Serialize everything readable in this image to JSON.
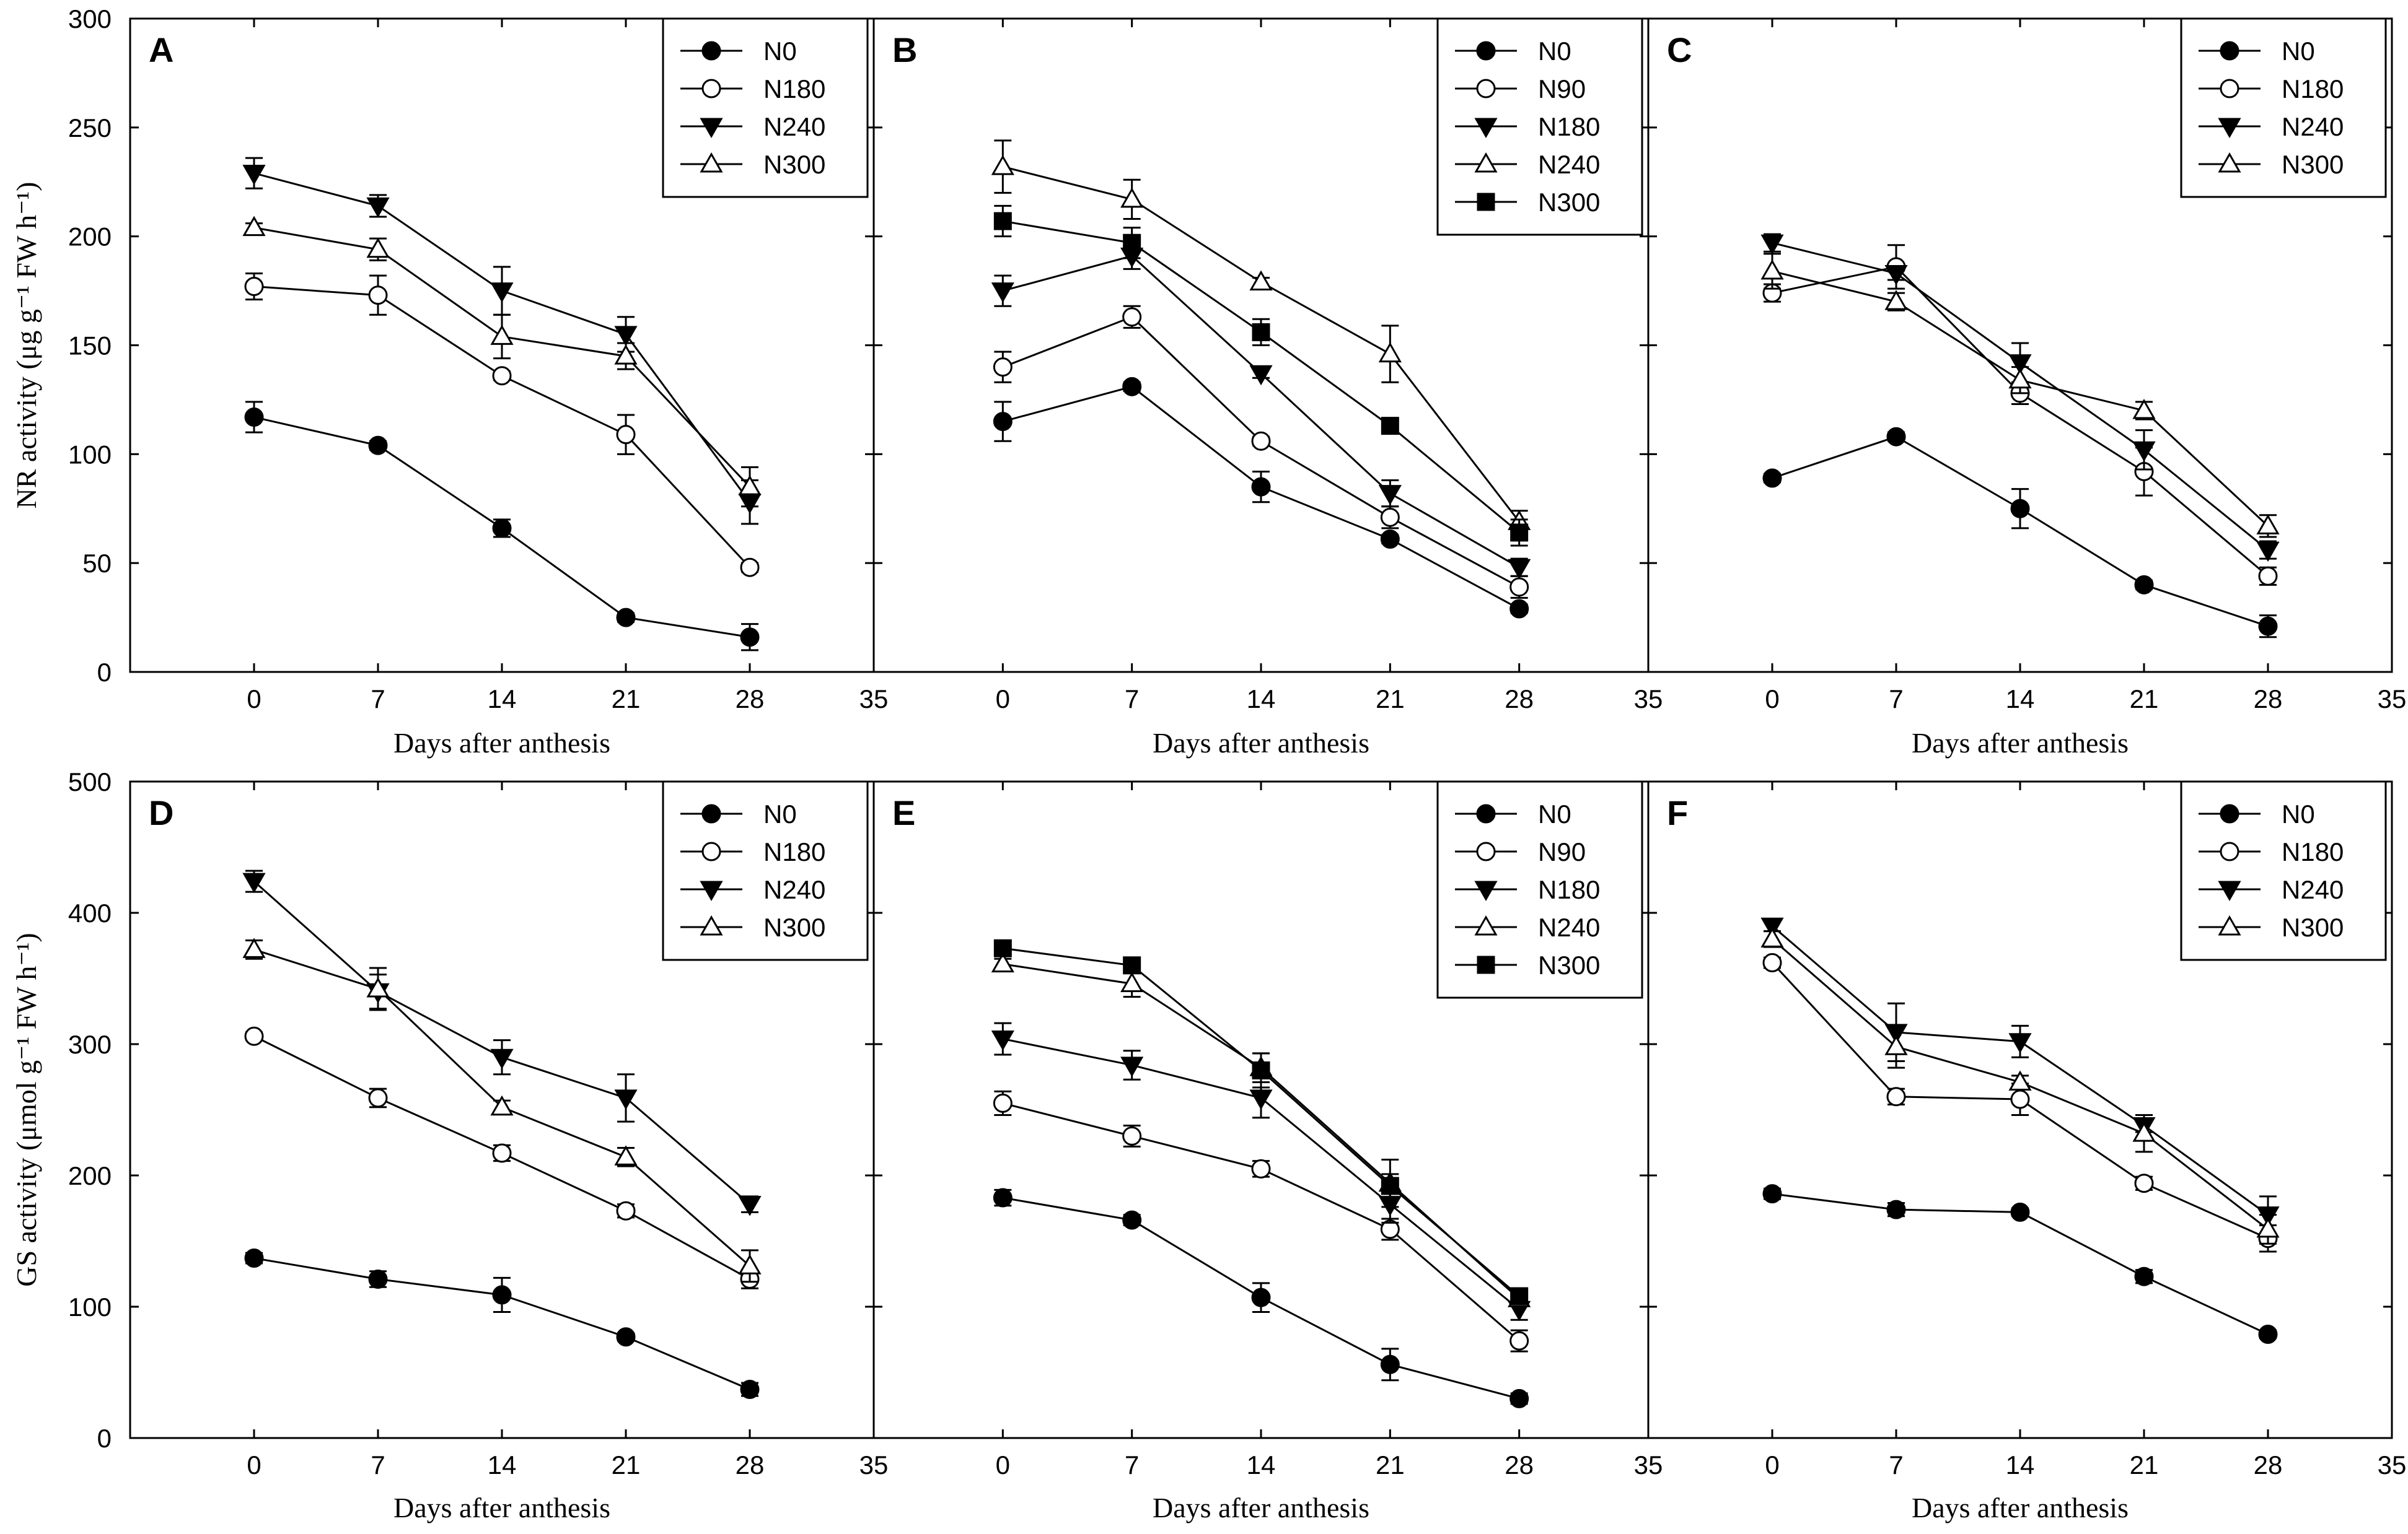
{
  "chart_data": [
    {
      "type": "line",
      "panel": "A",
      "xlabel": "Days after anthesis",
      "ylabel": "NR activity (μg g⁻¹ FW h⁻¹)",
      "xlim": [
        -7,
        35
      ],
      "ylim": [
        0,
        300
      ],
      "xticks": [
        "0",
        "7",
        "14",
        "21",
        "28",
        "35"
      ],
      "yticks": [
        "0",
        "50",
        "100",
        "150",
        "200",
        "250",
        "300"
      ],
      "x": [
        0,
        7,
        14,
        21,
        28
      ],
      "legend_position": "top-right",
      "series": [
        {
          "name": "N0",
          "marker": "filled-circle",
          "values": [
            117,
            104,
            66,
            25,
            16
          ],
          "errors": [
            7,
            2,
            4,
            2,
            6
          ]
        },
        {
          "name": "N180",
          "marker": "open-circle",
          "values": [
            177,
            173,
            136,
            109,
            48
          ],
          "errors": [
            6,
            9,
            2,
            9,
            2
          ]
        },
        {
          "name": "N240",
          "marker": "filled-triangle-down",
          "values": [
            229,
            214,
            175,
            155,
            78
          ],
          "errors": [
            7,
            5,
            11,
            8,
            10
          ]
        },
        {
          "name": "N300",
          "marker": "open-triangle-up",
          "values": [
            204,
            194,
            154,
            145,
            85
          ],
          "errors": [
            2,
            5,
            10,
            6,
            9
          ]
        }
      ]
    },
    {
      "type": "line",
      "panel": "B",
      "xlabel": "Days after anthesis",
      "xlim": [
        -7,
        35
      ],
      "ylim": [
        0,
        300
      ],
      "xticks": [
        "0",
        "7",
        "14",
        "21",
        "28",
        "35"
      ],
      "x": [
        0,
        7,
        14,
        21,
        28
      ],
      "legend_position": "top-right",
      "series": [
        {
          "name": "N0",
          "marker": "filled-circle",
          "values": [
            115,
            131,
            85,
            61,
            29
          ],
          "errors": [
            9,
            2,
            7,
            2,
            2
          ]
        },
        {
          "name": "N90",
          "marker": "open-circle",
          "values": [
            140,
            163,
            106,
            71,
            39
          ],
          "errors": [
            7,
            5,
            2,
            5,
            5
          ]
        },
        {
          "name": "N180",
          "marker": "filled-triangle-down",
          "values": [
            175,
            191,
            137,
            82,
            48
          ],
          "errors": [
            7,
            6,
            2,
            6,
            4
          ]
        },
        {
          "name": "N240",
          "marker": "open-triangle-up",
          "values": [
            232,
            217,
            179,
            146,
            69
          ],
          "errors": [
            12,
            9,
            2,
            13,
            5
          ]
        },
        {
          "name": "N300",
          "marker": "filled-square",
          "values": [
            207,
            197,
            156,
            113,
            64
          ],
          "errors": [
            7,
            7,
            6,
            3,
            6
          ]
        }
      ]
    },
    {
      "type": "line",
      "panel": "C",
      "xlabel": "Days after anthesis",
      "xlim": [
        -7,
        35
      ],
      "ylim": [
        0,
        300
      ],
      "xticks": [
        "0",
        "7",
        "14",
        "21",
        "28",
        "35"
      ],
      "x": [
        0,
        7,
        14,
        21,
        28
      ],
      "legend_position": "top-right",
      "series": [
        {
          "name": "N0",
          "marker": "filled-circle",
          "values": [
            89,
            108,
            75,
            40,
            21
          ],
          "errors": [
            2,
            2,
            9,
            2,
            5
          ]
        },
        {
          "name": "N180",
          "marker": "open-circle",
          "values": [
            174,
            186,
            128,
            92,
            44
          ],
          "errors": [
            4,
            10,
            5,
            11,
            4
          ]
        },
        {
          "name": "N240",
          "marker": "filled-triangle-down",
          "values": [
            197,
            183,
            142,
            102,
            56
          ],
          "errors": [
            4,
            3,
            9,
            9,
            4
          ]
        },
        {
          "name": "N300",
          "marker": "open-triangle-up",
          "values": [
            184,
            170,
            134,
            120,
            67
          ],
          "errors": [
            8,
            4,
            6,
            4,
            5
          ]
        }
      ]
    },
    {
      "type": "line",
      "panel": "D",
      "xlabel": "Days after anthesis",
      "ylabel": "GS activity (μmol g⁻¹ FW h⁻¹)",
      "xlim": [
        -7,
        35
      ],
      "ylim": [
        0,
        500
      ],
      "xticks": [
        "0",
        "7",
        "14",
        "21",
        "28",
        "35"
      ],
      "yticks": [
        "0",
        "100",
        "200",
        "300",
        "400",
        "500"
      ],
      "x": [
        0,
        7,
        14,
        21,
        28
      ],
      "legend_position": "top-right",
      "series": [
        {
          "name": "N0",
          "marker": "filled-circle",
          "values": [
            137,
            121,
            109,
            77,
            37
          ],
          "errors": [
            4,
            6,
            13,
            3,
            5
          ]
        },
        {
          "name": "N180",
          "marker": "open-circle",
          "values": [
            306,
            259,
            217,
            173,
            121
          ],
          "errors": [
            3,
            7,
            6,
            5,
            7
          ]
        },
        {
          "name": "N240",
          "marker": "filled-triangle-down",
          "values": [
            424,
            340,
            290,
            259,
            178
          ],
          "errors": [
            8,
            13,
            13,
            18,
            6
          ]
        },
        {
          "name": "N300",
          "marker": "open-triangle-up",
          "values": [
            372,
            342,
            252,
            214,
            131
          ],
          "errors": [
            7,
            16,
            5,
            7,
            12
          ]
        }
      ]
    },
    {
      "type": "line",
      "panel": "E",
      "xlabel": "Days after anthesis",
      "xlim": [
        -7,
        35
      ],
      "ylim": [
        0,
        500
      ],
      "xticks": [
        "0",
        "7",
        "14",
        "21",
        "28",
        "35"
      ],
      "x": [
        0,
        7,
        14,
        21,
        28
      ],
      "legend_position": "top-right",
      "series": [
        {
          "name": "N0",
          "marker": "filled-circle",
          "values": [
            183,
            166,
            107,
            56,
            30
          ],
          "errors": [
            6,
            4,
            11,
            12,
            4
          ]
        },
        {
          "name": "N90",
          "marker": "open-circle",
          "values": [
            255,
            230,
            205,
            159,
            74
          ],
          "errors": [
            9,
            8,
            6,
            8,
            8
          ]
        },
        {
          "name": "N180",
          "marker": "filled-triangle-down",
          "values": [
            304,
            284,
            259,
            178,
            98
          ],
          "errors": [
            12,
            11,
            15,
            14,
            8
          ]
        },
        {
          "name": "N240",
          "marker": "open-triangle-up",
          "values": [
            361,
            346,
            282,
            194,
            106
          ],
          "errors": [
            4,
            10,
            11,
            18,
            5
          ]
        },
        {
          "name": "N300",
          "marker": "filled-square",
          "values": [
            373,
            360,
            280,
            192,
            108
          ],
          "errors": [
            6,
            4,
            13,
            9,
            6
          ]
        }
      ]
    },
    {
      "type": "line",
      "panel": "F",
      "xlabel": "Days after anthesis",
      "xlim": [
        -7,
        35
      ],
      "ylim": [
        0,
        500
      ],
      "xticks": [
        "0",
        "7",
        "14",
        "21",
        "28",
        "35"
      ],
      "x": [
        0,
        7,
        14,
        21,
        28
      ],
      "legend_position": "top-right",
      "series": [
        {
          "name": "N0",
          "marker": "filled-circle",
          "values": [
            186,
            174,
            172,
            123,
            79
          ],
          "errors": [
            4,
            5,
            3,
            5,
            3
          ]
        },
        {
          "name": "N180",
          "marker": "open-circle",
          "values": [
            362,
            260,
            258,
            194,
            152
          ],
          "errors": [
            4,
            6,
            12,
            5,
            10
          ]
        },
        {
          "name": "N240",
          "marker": "filled-triangle-down",
          "values": [
            390,
            309,
            302,
            238,
            170
          ],
          "errors": [
            4,
            22,
            12,
            5,
            14
          ]
        },
        {
          "name": "N300",
          "marker": "open-triangle-up",
          "values": [
            380,
            298,
            271,
            232,
            159
          ],
          "errors": [
            6,
            16,
            5,
            14,
            11
          ]
        }
      ]
    }
  ]
}
